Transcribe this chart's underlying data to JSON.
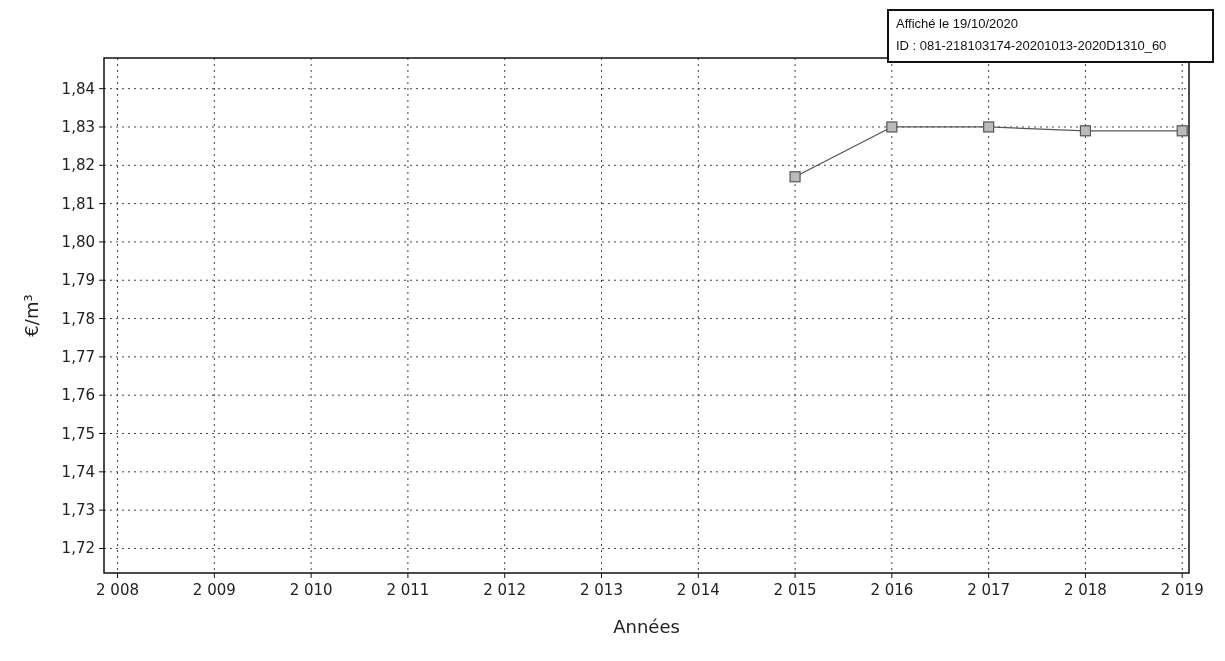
{
  "chart_data": {
    "type": "line",
    "xlabel": "Années",
    "ylabel": "€/m³",
    "x": [
      2015,
      2016,
      2017,
      2018,
      2019
    ],
    "series": [
      {
        "color": "#555555",
        "values": [
          1.817,
          1.83,
          1.83,
          1.829,
          1.829
        ]
      }
    ],
    "marker": "square",
    "line_style": "solid",
    "grid": true,
    "xlim": [
      2007.86,
      2019.07
    ],
    "xticks": [
      {
        "value": 2008,
        "label": "2 008"
      },
      {
        "value": 2009,
        "label": "2 009"
      },
      {
        "value": 2010,
        "label": "2 010"
      },
      {
        "value": 2011,
        "label": "2 011"
      },
      {
        "value": 2012,
        "label": "2 012"
      },
      {
        "value": 2013,
        "label": "2 013"
      },
      {
        "value": 2014,
        "label": "2 014"
      },
      {
        "value": 2015,
        "label": "2 015"
      },
      {
        "value": 2016,
        "label": "2 016"
      },
      {
        "value": 2017,
        "label": "2 017"
      },
      {
        "value": 2018,
        "label": "2 018"
      },
      {
        "value": 2019,
        "label": "2 019"
      }
    ],
    "ylim": [
      1.7136,
      1.848
    ],
    "yticks": [
      {
        "value": 1.72,
        "label": "1,72"
      },
      {
        "value": 1.73,
        "label": "1,73"
      },
      {
        "value": 1.74,
        "label": "1,74"
      },
      {
        "value": 1.75,
        "label": "1,75"
      },
      {
        "value": 1.76,
        "label": "1,76"
      },
      {
        "value": 1.77,
        "label": "1,77"
      },
      {
        "value": 1.78,
        "label": "1,78"
      },
      {
        "value": 1.79,
        "label": "1,79"
      },
      {
        "value": 1.8,
        "label": "1,80"
      },
      {
        "value": 1.81,
        "label": "1,81"
      },
      {
        "value": 1.82,
        "label": "1,82"
      },
      {
        "value": 1.83,
        "label": "1,83"
      },
      {
        "value": 1.84,
        "label": "1,84"
      }
    ],
    "annotations": [
      "Affiché le 19/10/2020",
      "ID : 081-218103174-20201013-2020D1310_60"
    ]
  }
}
